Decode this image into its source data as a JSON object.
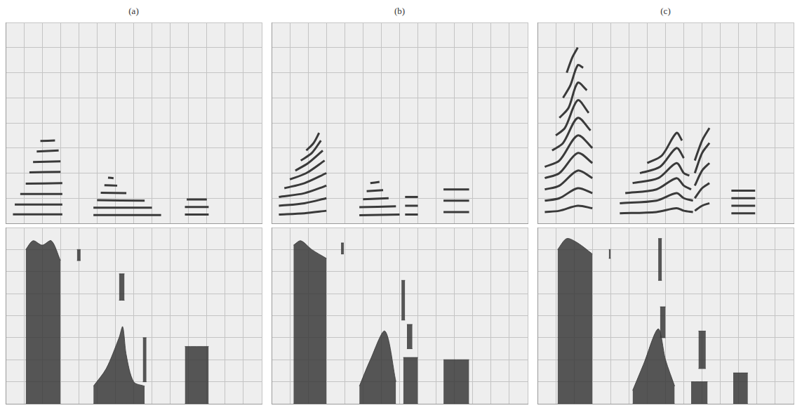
{
  "chart_data": [
    {
      "type": "line",
      "title": "(a)",
      "xlim": [
        0,
        14
      ],
      "xticks": [
        0,
        1,
        2,
        3,
        4,
        5,
        6,
        7,
        8,
        9,
        10,
        11,
        12,
        13,
        14
      ],
      "ylim": [
        0,
        8
      ],
      "yticks": [
        0,
        1,
        2,
        3,
        4,
        5,
        6,
        7,
        8
      ],
      "grid": true,
      "tick_labels": false,
      "color": "#3a3a3a",
      "series": [
        {
          "x": [
            0.4,
            3.1
          ],
          "values": [
            0.36,
            0.36
          ]
        },
        {
          "x": [
            0.5,
            3.1
          ],
          "values": [
            0.75,
            0.75
          ]
        },
        {
          "x": [
            0.8,
            3.1
          ],
          "values": [
            1.17,
            1.17
          ]
        },
        {
          "x": [
            1.1,
            3.1
          ],
          "values": [
            1.58,
            1.6
          ]
        },
        {
          "x": [
            1.3,
            3.0
          ],
          "values": [
            2.03,
            2.05
          ]
        },
        {
          "x": [
            1.5,
            3.0
          ],
          "values": [
            2.44,
            2.47
          ]
        },
        {
          "x": [
            1.7,
            2.9
          ],
          "values": [
            2.86,
            2.9
          ]
        },
        {
          "x": [
            1.9,
            2.7
          ],
          "values": [
            3.28,
            3.3
          ]
        },
        {
          "x": [
            4.8,
            8.5
          ],
          "values": [
            0.33,
            0.33
          ]
        },
        {
          "x": [
            4.8,
            8.0
          ],
          "values": [
            0.62,
            0.62
          ]
        },
        {
          "x": [
            5.0,
            7.6
          ],
          "values": [
            0.92,
            0.9
          ]
        },
        {
          "x": [
            5.2,
            6.6
          ],
          "values": [
            1.22,
            1.2
          ]
        },
        {
          "x": [
            5.4,
            6.1
          ],
          "values": [
            1.52,
            1.5
          ]
        },
        {
          "x": [
            5.6,
            5.9
          ],
          "values": [
            1.82,
            1.8
          ]
        },
        {
          "x": [
            9.8,
            11.1
          ],
          "values": [
            0.35,
            0.35
          ]
        },
        {
          "x": [
            9.8,
            11.1
          ],
          "values": [
            0.65,
            0.65
          ]
        },
        {
          "x": [
            9.9,
            11.0
          ],
          "values": [
            0.95,
            0.95
          ]
        }
      ]
    },
    {
      "type": "line",
      "title": "(b)",
      "xlim": [
        0,
        14
      ],
      "xticks": [
        0,
        1,
        2,
        3,
        4,
        5,
        6,
        7,
        8,
        9,
        10,
        11,
        12,
        13,
        14
      ],
      "ylim": [
        0,
        8
      ],
      "yticks": [
        0,
        1,
        2,
        3,
        4,
        5,
        6,
        7,
        8
      ],
      "grid": true,
      "tick_labels": false,
      "color": "#3a3a3a",
      "series": [
        {
          "x": [
            0.4,
            1.8,
            3.0
          ],
          "values": [
            0.35,
            0.4,
            0.5
          ]
        },
        {
          "x": [
            0.4,
            1.8,
            3.0
          ],
          "values": [
            0.7,
            0.8,
            1.0
          ]
        },
        {
          "x": [
            0.4,
            1.8,
            3.0
          ],
          "values": [
            1.05,
            1.2,
            1.5
          ]
        },
        {
          "x": [
            0.7,
            1.8,
            3.0
          ],
          "values": [
            1.4,
            1.6,
            2.0
          ]
        },
        {
          "x": [
            1.0,
            1.9,
            2.9
          ],
          "values": [
            1.75,
            2.0,
            2.5
          ]
        },
        {
          "x": [
            1.3,
            2.0,
            2.8
          ],
          "values": [
            2.1,
            2.4,
            2.9
          ]
        },
        {
          "x": [
            1.6,
            2.2,
            2.7
          ],
          "values": [
            2.5,
            2.8,
            3.3
          ]
        },
        {
          "x": [
            1.9,
            2.3,
            2.6
          ],
          "values": [
            2.9,
            3.2,
            3.6
          ]
        },
        {
          "x": [
            4.8,
            7.0
          ],
          "values": [
            0.32,
            0.35
          ]
        },
        {
          "x": [
            4.8,
            6.8
          ],
          "values": [
            0.64,
            0.68
          ]
        },
        {
          "x": [
            5.0,
            6.4
          ],
          "values": [
            0.96,
            1.0
          ]
        },
        {
          "x": [
            5.2,
            6.1
          ],
          "values": [
            1.28,
            1.32
          ]
        },
        {
          "x": [
            5.4,
            5.9
          ],
          "values": [
            1.6,
            1.65
          ]
        },
        {
          "x": [
            7.3,
            8.0
          ],
          "values": [
            0.35,
            0.35
          ]
        },
        {
          "x": [
            7.3,
            8.0
          ],
          "values": [
            0.7,
            0.7
          ]
        },
        {
          "x": [
            7.3,
            8.0
          ],
          "values": [
            1.05,
            1.05
          ]
        },
        {
          "x": [
            9.4,
            10.8
          ],
          "values": [
            0.45,
            0.45
          ]
        },
        {
          "x": [
            9.4,
            10.8
          ],
          "values": [
            0.9,
            0.9
          ]
        },
        {
          "x": [
            9.4,
            10.8
          ],
          "values": [
            1.35,
            1.35
          ]
        }
      ]
    },
    {
      "type": "line",
      "title": "(c)",
      "xlim": [
        0,
        14
      ],
      "xticks": [
        0,
        1,
        2,
        3,
        4,
        5,
        6,
        7,
        8,
        9,
        10,
        11,
        12,
        13,
        14
      ],
      "ylim": [
        0,
        8
      ],
      "yticks": [
        0,
        1,
        2,
        3,
        4,
        5,
        6,
        7,
        8
      ],
      "grid": true,
      "tick_labels": false,
      "color": "#3a3a3a",
      "series": [
        {
          "x": [
            0.4,
            1.2,
            2.2,
            3.0
          ],
          "values": [
            0.45,
            0.5,
            0.7,
            0.6
          ]
        },
        {
          "x": [
            0.4,
            1.2,
            2.2,
            3.0
          ],
          "values": [
            0.9,
            1.0,
            1.4,
            1.2
          ]
        },
        {
          "x": [
            0.4,
            1.2,
            2.2,
            3.0
          ],
          "values": [
            1.35,
            1.5,
            2.1,
            1.8
          ]
        },
        {
          "x": [
            0.4,
            1.2,
            2.2,
            3.0
          ],
          "values": [
            1.8,
            2.0,
            2.8,
            2.4
          ]
        },
        {
          "x": [
            0.4,
            1.2,
            2.2,
            3.0
          ],
          "values": [
            2.25,
            2.5,
            3.5,
            3.0
          ]
        },
        {
          "x": [
            0.8,
            1.4,
            2.2,
            2.9
          ],
          "values": [
            2.9,
            3.2,
            4.2,
            3.7
          ]
        },
        {
          "x": [
            1.0,
            1.5,
            2.2,
            2.8
          ],
          "values": [
            3.5,
            3.8,
            4.9,
            4.4
          ]
        },
        {
          "x": [
            1.2,
            1.7,
            2.2,
            2.7
          ],
          "values": [
            4.2,
            4.6,
            5.6,
            5.3
          ]
        },
        {
          "x": [
            1.4,
            1.8,
            2.2,
            2.5
          ],
          "values": [
            5.0,
            5.5,
            6.3,
            6.2
          ]
        },
        {
          "x": [
            1.6,
            1.9,
            2.2
          ],
          "values": [
            6.0,
            6.6,
            7.0
          ]
        },
        {
          "x": [
            4.5,
            6.5,
            7.6,
            8.0,
            8.5
          ],
          "values": [
            0.4,
            0.45,
            0.6,
            0.5,
            0.45
          ]
        },
        {
          "x": [
            4.5,
            6.5,
            7.6,
            8.0,
            8.5
          ],
          "values": [
            0.8,
            0.9,
            1.2,
            1.0,
            0.9
          ]
        },
        {
          "x": [
            4.8,
            6.5,
            7.6,
            8.0,
            8.4
          ],
          "values": [
            1.2,
            1.35,
            1.8,
            1.5,
            1.35
          ]
        },
        {
          "x": [
            5.2,
            6.6,
            7.6,
            8.0,
            8.3
          ],
          "values": [
            1.6,
            1.8,
            2.4,
            2.0,
            1.9
          ]
        },
        {
          "x": [
            5.6,
            6.7,
            7.6,
            8.0
          ],
          "values": [
            2.0,
            2.25,
            3.0,
            2.6
          ]
        },
        {
          "x": [
            6.0,
            6.8,
            7.6,
            7.9
          ],
          "values": [
            2.4,
            2.7,
            3.6,
            3.3
          ]
        },
        {
          "x": [
            8.6,
            9.0,
            9.4
          ],
          "values": [
            0.5,
            0.7,
            0.8
          ]
        },
        {
          "x": [
            8.6,
            9.0,
            9.4
          ],
          "values": [
            1.0,
            1.4,
            1.6
          ]
        },
        {
          "x": [
            8.6,
            9.0,
            9.4
          ],
          "values": [
            1.5,
            2.1,
            2.4
          ]
        },
        {
          "x": [
            8.6,
            9.0,
            9.4
          ],
          "values": [
            2.0,
            2.8,
            3.2
          ]
        },
        {
          "x": [
            8.6,
            9.0,
            9.4
          ],
          "values": [
            2.5,
            3.3,
            3.8
          ]
        },
        {
          "x": [
            10.6,
            11.9
          ],
          "values": [
            0.4,
            0.4
          ]
        },
        {
          "x": [
            10.6,
            11.9
          ],
          "values": [
            0.7,
            0.7
          ]
        },
        {
          "x": [
            10.6,
            11.9
          ],
          "values": [
            1.0,
            1.0
          ]
        },
        {
          "x": [
            10.6,
            11.9
          ],
          "values": [
            1.3,
            1.3
          ]
        }
      ]
    },
    {
      "type": "area",
      "xlim": [
        0,
        14
      ],
      "xticks": [
        0,
        1,
        2,
        3,
        4,
        5,
        6,
        7,
        8,
        9,
        10,
        11,
        12,
        13,
        14
      ],
      "ylim": [
        0,
        8
      ],
      "yticks": [
        0,
        1,
        2,
        3,
        4,
        5,
        6,
        7,
        8
      ],
      "grid": true,
      "tick_labels": false,
      "color": "#3a3a3a",
      "series": [
        {
          "x": [
            1.1,
            1.5,
            2.0,
            2.5,
            3.0
          ],
          "low": [
            0,
            0,
            0,
            0,
            0
          ],
          "high": [
            7.0,
            7.4,
            7.2,
            7.4,
            6.5
          ]
        },
        {
          "x": [
            3.9,
            4.1
          ],
          "low": [
            6.5,
            6.5
          ],
          "high": [
            7.0,
            7.0
          ]
        },
        {
          "x": [
            4.8,
            5.5,
            6.2,
            6.4,
            6.6,
            7.0,
            7.6
          ],
          "low": [
            0,
            0,
            0,
            0,
            0,
            0,
            0
          ],
          "high": [
            0.8,
            1.6,
            3.0,
            3.5,
            2.2,
            1.0,
            0.8
          ]
        },
        {
          "x": [
            6.2,
            6.5
          ],
          "low": [
            4.7,
            4.7
          ],
          "high": [
            5.9,
            5.9
          ]
        },
        {
          "x": [
            7.5,
            7.7
          ],
          "low": [
            1.0,
            1.0
          ],
          "high": [
            3.0,
            3.0
          ]
        },
        {
          "x": [
            9.8,
            11.1
          ],
          "low": [
            0,
            0
          ],
          "high": [
            2.6,
            2.6
          ]
        }
      ]
    },
    {
      "type": "area",
      "xlim": [
        0,
        14
      ],
      "xticks": [
        0,
        1,
        2,
        3,
        4,
        5,
        6,
        7,
        8,
        9,
        10,
        11,
        12,
        13,
        14
      ],
      "ylim": [
        0,
        8
      ],
      "yticks": [
        0,
        1,
        2,
        3,
        4,
        5,
        6,
        7,
        8
      ],
      "grid": true,
      "tick_labels": false,
      "color": "#3a3a3a",
      "series": [
        {
          "x": [
            1.2,
            1.6,
            2.2,
            3.0
          ],
          "low": [
            0,
            0,
            0,
            0
          ],
          "high": [
            7.2,
            7.4,
            7.0,
            6.6
          ]
        },
        {
          "x": [
            3.8,
            3.95
          ],
          "low": [
            6.8,
            6.8
          ],
          "high": [
            7.3,
            7.3
          ]
        },
        {
          "x": [
            4.8,
            5.4,
            6.2,
            6.8
          ],
          "low": [
            0,
            0,
            0,
            0
          ],
          "high": [
            0.8,
            2.0,
            3.3,
            1.0
          ]
        },
        {
          "x": [
            7.1,
            7.3
          ],
          "low": [
            3.8,
            3.8
          ],
          "high": [
            5.6,
            5.6
          ]
        },
        {
          "x": [
            7.2,
            8.0
          ],
          "low": [
            0,
            0
          ],
          "high": [
            2.1,
            2.1
          ]
        },
        {
          "x": [
            7.4,
            7.7
          ],
          "low": [
            2.5,
            2.5
          ],
          "high": [
            3.6,
            3.6
          ]
        },
        {
          "x": [
            9.4,
            10.8
          ],
          "low": [
            0,
            0
          ],
          "high": [
            2.0,
            2.0
          ]
        }
      ]
    },
    {
      "type": "area",
      "xlim": [
        0,
        14
      ],
      "xticks": [
        0,
        1,
        2,
        3,
        4,
        5,
        6,
        7,
        8,
        9,
        10,
        11,
        12,
        13,
        14
      ],
      "ylim": [
        0,
        8
      ],
      "yticks": [
        0,
        1,
        2,
        3,
        4,
        5,
        6,
        7,
        8
      ],
      "grid": true,
      "tick_labels": false,
      "color": "#3a3a3a",
      "series": [
        {
          "x": [
            1.1,
            1.6,
            2.2,
            3.0
          ],
          "low": [
            0,
            0,
            0,
            0
          ],
          "high": [
            7.0,
            7.5,
            7.3,
            6.8
          ]
        },
        {
          "x": [
            3.9,
            4.0
          ],
          "low": [
            6.6,
            6.6
          ],
          "high": [
            7.0,
            7.0
          ]
        },
        {
          "x": [
            5.2,
            5.8,
            6.6,
            7.0,
            7.5
          ],
          "low": [
            0,
            0,
            0,
            0,
            0
          ],
          "high": [
            0.6,
            1.8,
            3.4,
            2.0,
            0.8
          ]
        },
        {
          "x": [
            6.6,
            6.8
          ],
          "low": [
            5.6,
            5.6
          ],
          "high": [
            7.5,
            7.5
          ]
        },
        {
          "x": [
            6.7,
            7.0
          ],
          "low": [
            3.0,
            3.0
          ],
          "high": [
            4.4,
            4.4
          ]
        },
        {
          "x": [
            8.4,
            9.3
          ],
          "low": [
            0,
            0
          ],
          "high": [
            1.0,
            1.0
          ]
        },
        {
          "x": [
            8.8,
            9.2
          ],
          "low": [
            1.6,
            1.6
          ],
          "high": [
            3.3,
            3.3
          ]
        },
        {
          "x": [
            10.7,
            11.5
          ],
          "low": [
            0,
            0
          ],
          "high": [
            1.4,
            1.4
          ]
        }
      ]
    }
  ]
}
